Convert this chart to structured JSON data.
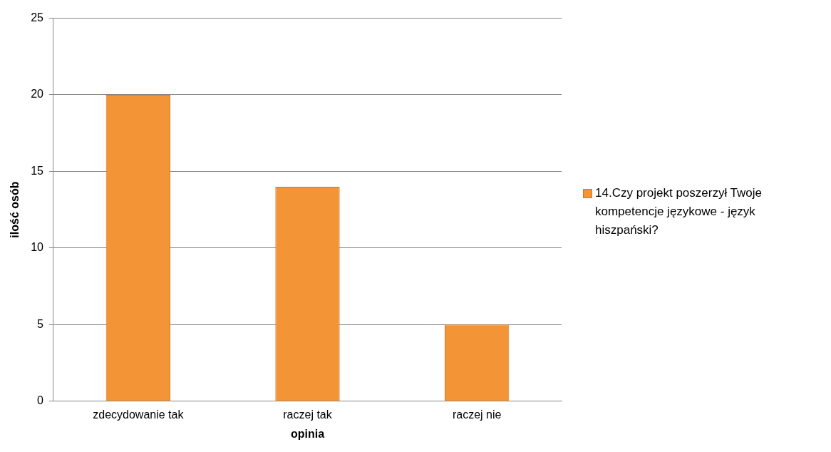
{
  "chart_data": {
    "type": "bar",
    "xlabel": "opinia",
    "ylabel": "ilość osób",
    "categories": [
      "zdecydowanie tak",
      "raczej tak",
      "raczej nie"
    ],
    "series": [
      {
        "name": "14.Czy projekt poszerzył Twoje kompetencje językowe - język hiszpański?",
        "color": "#f39437",
        "values": [
          20,
          14,
          5
        ]
      }
    ],
    "ylim": [
      0,
      25
    ],
    "yticks": [
      0,
      5,
      10,
      15,
      20,
      25
    ],
    "grid": "y",
    "legend": "right"
  }
}
